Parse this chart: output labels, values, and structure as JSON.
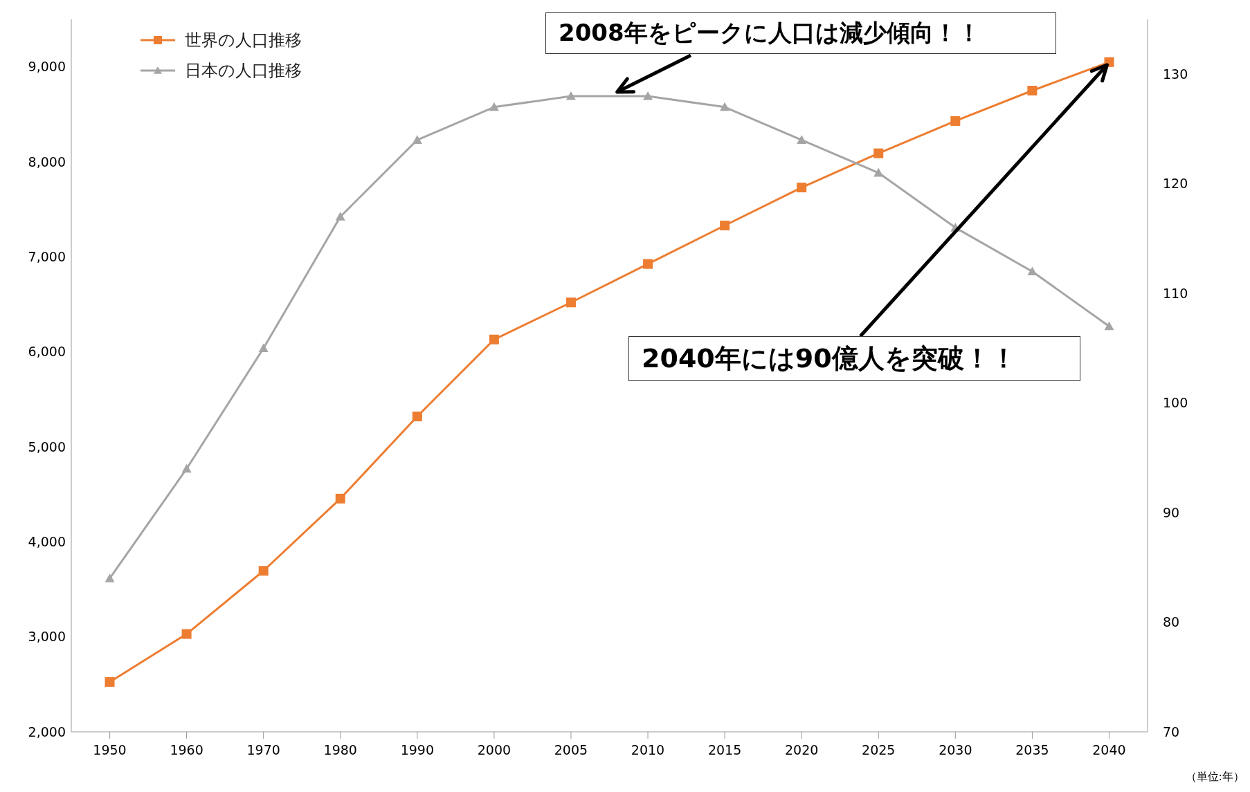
{
  "chart_data": {
    "type": "line",
    "categories": [
      "1950",
      "1960",
      "1970",
      "1980",
      "1990",
      "2000",
      "2005",
      "2010",
      "2015",
      "2020",
      "2025",
      "2030",
      "2035",
      "2040"
    ],
    "series": [
      {
        "name": "世界の人口推移",
        "color": "#ed7d31",
        "marker": "square",
        "values": [
          2525,
          3030,
          3695,
          4455,
          5320,
          6130,
          6520,
          6925,
          7330,
          7730,
          8090,
          8430,
          8750,
          9050
        ]
      },
      {
        "name": "日本の人口推移",
        "color": "#a5a5a5",
        "marker": "triangle",
        "axis": "y2",
        "values": [
          84,
          94,
          105,
          117,
          124,
          127,
          128,
          128,
          127,
          124,
          121,
          116,
          112,
          107
        ]
      }
    ],
    "ylim": [
      2000,
      9500
    ],
    "yticks": [
      {
        "value": 2000,
        "label": "2,000"
      },
      {
        "value": 3000,
        "label": "3,000"
      },
      {
        "value": 4000,
        "label": "4,000"
      },
      {
        "value": 5000,
        "label": "5,000"
      },
      {
        "value": 6000,
        "label": "6,000"
      },
      {
        "value": 7000,
        "label": "7,000"
      },
      {
        "value": 8000,
        "label": "8,000"
      },
      {
        "value": 9000,
        "label": "9,000"
      }
    ],
    "y2lim": [
      70,
      135
    ],
    "y2ticks": [
      70,
      80,
      90,
      100,
      110,
      120,
      130
    ],
    "grid": false,
    "legend": "top left",
    "line_style": "solid",
    "annotations": [
      "2008年をピークに人口は減少傾向！！",
      {
        "text": "2040年には90億人を突破！！",
        "x": "2040",
        "y": 9050
      },
      "（単位:年）"
    ]
  }
}
